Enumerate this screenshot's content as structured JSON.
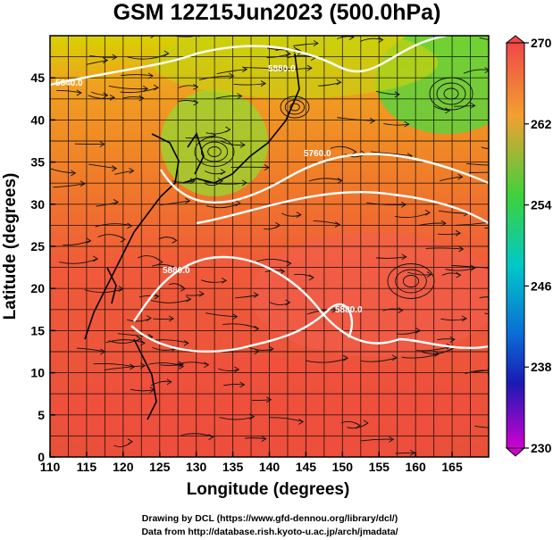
{
  "title": "GSM 12Z15Jun2023 (500.0hPa)",
  "xlabel": "Longitude (degrees)",
  "ylabel": "Latitude  (degrees)",
  "x_ticks": [
    "110",
    "115",
    "120",
    "125",
    "130",
    "135",
    "140",
    "145",
    "150",
    "155",
    "160",
    "165"
  ],
  "y_ticks": [
    "0",
    "5",
    "10",
    "15",
    "20",
    "25",
    "30",
    "35",
    "40",
    "45"
  ],
  "colorbar": {
    "ticks": [
      "270",
      "262",
      "254",
      "246",
      "238",
      "230"
    ],
    "colors": [
      "#f24a4a",
      "#f28c3c",
      "#e8c800",
      "#3cd23c",
      "#00c8c8",
      "#0a6cd6",
      "#1a1ab4",
      "#c800c8"
    ]
  },
  "contour_labels": [
    "5640.0",
    "5760.0",
    "5880.0",
    "5880.0",
    "5880.0"
  ],
  "credit_line1": "Drawing by DCL (https://www.gfd-dennou.org/library/dcl/)",
  "credit_line2": "Data from http://database.rish.kyoto-u.ac.jp/arch/jmadata/",
  "chart_data": {
    "type": "heatmap",
    "title": "GSM 12Z15Jun2023 (500.0hPa)",
    "xlabel": "Longitude (degrees)",
    "ylabel": "Latitude  (degrees)",
    "xlim": [
      110,
      170
    ],
    "ylim": [
      0,
      50
    ],
    "colorbar_range": [
      230,
      270
    ],
    "colorbar_ticks": [
      270,
      262,
      254,
      246,
      238,
      230
    ],
    "overlays": [
      "streamlines",
      "geopotential height contours",
      "coastlines",
      "grid"
    ],
    "contour_values": [
      5640.0,
      5760.0,
      5880.0
    ]
  }
}
